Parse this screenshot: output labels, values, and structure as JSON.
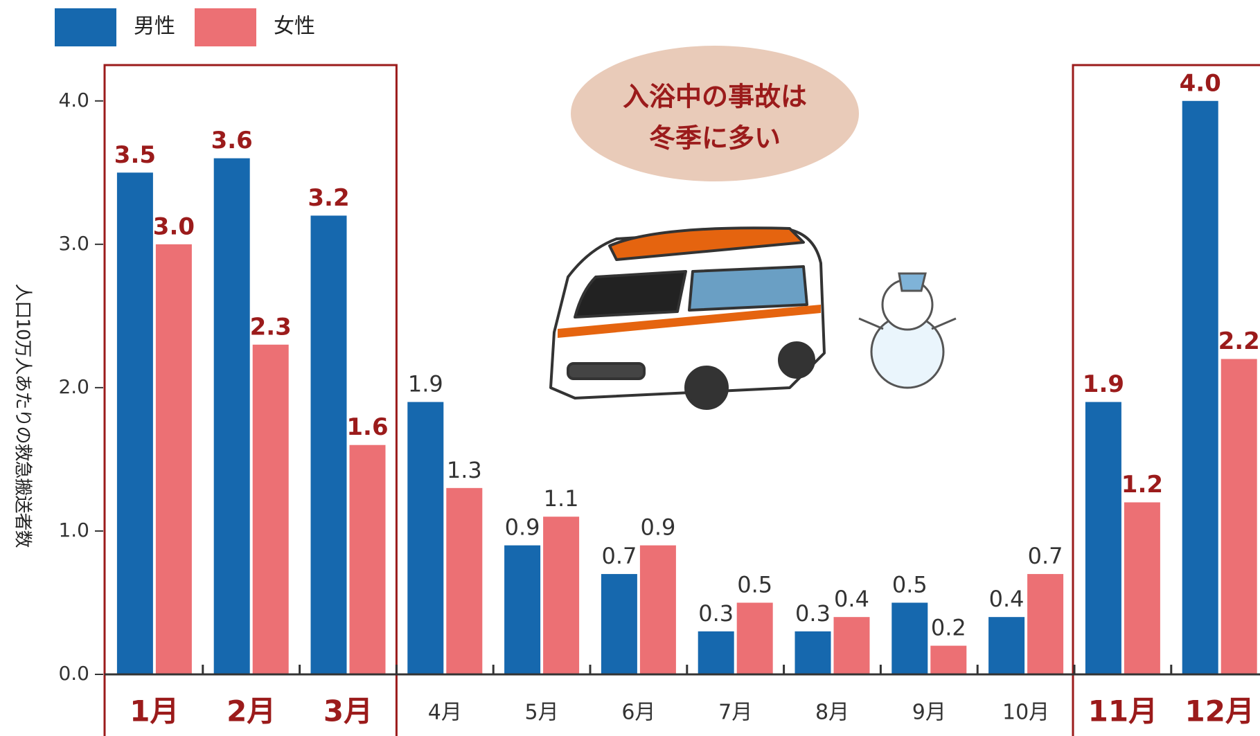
{
  "chart_data": {
    "type": "bar",
    "y_label": "人口10万人あたりの救急搬送者数",
    "annotation": [
      "入浴中の事故は",
      "冬季に多い"
    ],
    "categories": [
      "1月",
      "2月",
      "3月",
      "4月",
      "5月",
      "6月",
      "7月",
      "8月",
      "9月",
      "10月",
      "11月",
      "12月"
    ],
    "series": [
      {
        "name": "男性",
        "color": "#1668ae",
        "values": [
          3.5,
          3.6,
          3.2,
          1.9,
          0.9,
          0.7,
          0.3,
          0.3,
          0.5,
          0.4,
          1.9,
          4.0
        ],
        "value_labels": [
          "3.5",
          "3.6",
          "3.2",
          "1.9",
          "0.9",
          "0.7",
          "0.3",
          "0.3",
          "0.5",
          "0.4",
          "1.9",
          "4.0"
        ]
      },
      {
        "name": "女性",
        "color": "#ec7074",
        "values": [
          3.0,
          2.3,
          1.6,
          1.3,
          1.1,
          0.9,
          0.5,
          0.4,
          0.2,
          0.7,
          1.2,
          2.2
        ],
        "value_labels": [
          "3.0",
          "2.3",
          "1.6",
          "1.3",
          "1.1",
          "0.9",
          "0.5",
          "0.4",
          "0.2",
          "0.7",
          "1.2",
          "2.2"
        ]
      }
    ],
    "ylim": [
      0,
      4.25
    ],
    "yticks": [
      {
        "value": 0,
        "label": "0.0"
      },
      {
        "value": 1,
        "label": "1.0"
      },
      {
        "value": 2,
        "label": "2.0"
      },
      {
        "value": 3,
        "label": "3.0"
      },
      {
        "value": 4,
        "label": "4.0"
      }
    ],
    "highlight_groups": [
      [
        0,
        2
      ],
      [
        10,
        11
      ]
    ],
    "highlight_color": "#9b1b1b"
  }
}
